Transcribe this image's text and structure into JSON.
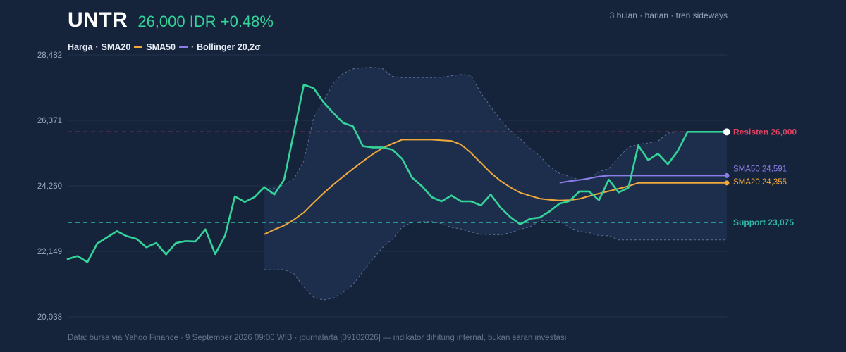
{
  "header": {
    "ticker": "UNTR",
    "price_text": "26,000 IDR +0.48%",
    "meta": "3 bulan · harian · tren sideways"
  },
  "legend": {
    "price": "Harga",
    "sep1": "·",
    "sma20": "SMA20",
    "sma50": "SMA50",
    "sep2": "·",
    "bollinger": "Bollinger 20,2σ"
  },
  "footer": {
    "text": "Data: bursa via Yahoo Finance · 9 September 2026 09:00 WIB · journalarta [09102026] — indikator dihitung internal, bukan saran investasi"
  },
  "colors": {
    "background": "#15233b",
    "grid": "#22324d",
    "price": "#34d399",
    "sma20": "#f0a93b",
    "sma50": "#8b7ee8",
    "band_fill": "#1e3050",
    "band_edge": "#5b7096",
    "resistance": "#e24462",
    "support": "#2fb9a3"
  },
  "chart_data": {
    "type": "line",
    "title": "UNTR",
    "ylim": [
      20038,
      28482
    ],
    "yticks": [
      20038,
      22149,
      24260,
      26371,
      28482
    ],
    "ytick_labels": [
      "20,038",
      "22,149",
      "24,260",
      "26,371",
      "28,482"
    ],
    "grid": true,
    "x": [
      1,
      2,
      3,
      4,
      5,
      6,
      7,
      8,
      9,
      10,
      11,
      12,
      13,
      14,
      15,
      16,
      17,
      18,
      19,
      20,
      21,
      22,
      23,
      24,
      25,
      26,
      27,
      28,
      29,
      30,
      31,
      32,
      33,
      34,
      35,
      36,
      37,
      38,
      39,
      40,
      41,
      42,
      43,
      44,
      45,
      46,
      47,
      48,
      49,
      50,
      51,
      52,
      53,
      54,
      55,
      56,
      57,
      58,
      59,
      60,
      61,
      62,
      63,
      64,
      65,
      66,
      67,
      68
    ],
    "series": [
      {
        "name": "Harga",
        "values": [
          21900,
          22000,
          21800,
          22400,
          22600,
          22800,
          22640,
          22550,
          22280,
          22420,
          22050,
          22420,
          22480,
          22470,
          22860,
          22060,
          22660,
          23920,
          23740,
          23900,
          24220,
          23980,
          24460,
          25990,
          27520,
          27410,
          26960,
          26610,
          26290,
          26180,
          25540,
          25500,
          25500,
          25430,
          25130,
          24530,
          24250,
          23900,
          23760,
          23950,
          23760,
          23760,
          23630,
          23980,
          23560,
          23250,
          23020,
          23200,
          23240,
          23440,
          23690,
          23770,
          24080,
          24080,
          23800,
          24460,
          24050,
          24200,
          25560,
          25090,
          25300,
          24960,
          25380,
          26000,
          26000,
          26000,
          26000,
          26000
        ]
      },
      {
        "name": "SMA20",
        "values": [
          null,
          null,
          null,
          null,
          null,
          null,
          null,
          null,
          null,
          null,
          null,
          null,
          null,
          null,
          null,
          null,
          null,
          null,
          null,
          null,
          22700,
          22850,
          22980,
          23170,
          23400,
          23720,
          24020,
          24300,
          24560,
          24810,
          25050,
          25280,
          25480,
          25620,
          25750,
          25750,
          25750,
          25750,
          25730,
          25710,
          25590,
          25320,
          25000,
          24680,
          24420,
          24210,
          24040,
          23940,
          23850,
          23810,
          23790,
          23800,
          23840,
          23930,
          24010,
          24090,
          24170,
          24250,
          24355,
          24355,
          24355,
          24355,
          24355,
          24355,
          24355,
          24355,
          24355,
          24355
        ]
      },
      {
        "name": "SMA50",
        "values": [
          null,
          null,
          null,
          null,
          null,
          null,
          null,
          null,
          null,
          null,
          null,
          null,
          null,
          null,
          null,
          null,
          null,
          null,
          null,
          null,
          null,
          null,
          null,
          null,
          null,
          null,
          null,
          null,
          null,
          null,
          null,
          null,
          null,
          null,
          null,
          null,
          null,
          null,
          null,
          null,
          null,
          null,
          null,
          null,
          null,
          null,
          null,
          null,
          null,
          null,
          24360,
          24410,
          24450,
          24500,
          24560,
          24591,
          24591,
          24591,
          24591,
          24591,
          24591,
          24591,
          24591,
          24591,
          24591,
          24591,
          24591,
          24591
        ]
      },
      {
        "name": "Bollinger 20,2σ",
        "upper": [
          null,
          null,
          null,
          null,
          null,
          null,
          null,
          null,
          null,
          null,
          null,
          null,
          null,
          null,
          null,
          null,
          null,
          null,
          null,
          null,
          24150,
          24190,
          24290,
          24490,
          25060,
          26460,
          26980,
          27570,
          27890,
          28030,
          28070,
          28080,
          28040,
          27790,
          27750,
          27750,
          27750,
          27750,
          27760,
          27810,
          27850,
          27820,
          27250,
          26810,
          26380,
          26040,
          25770,
          25470,
          25220,
          24880,
          24660,
          24560,
          24460,
          24470,
          24720,
          24810,
          25180,
          25500,
          25600,
          25640,
          25700,
          25960,
          26000,
          26000,
          26000,
          26000,
          26000,
          26000
        ],
        "lower": [
          null,
          null,
          null,
          null,
          null,
          null,
          null,
          null,
          null,
          null,
          null,
          null,
          null,
          null,
          null,
          null,
          null,
          null,
          null,
          null,
          21560,
          21550,
          21560,
          21420,
          21000,
          20670,
          20580,
          20640,
          20830,
          21080,
          21490,
          21890,
          22270,
          22540,
          22940,
          23080,
          23110,
          23110,
          23040,
          22920,
          22870,
          22770,
          22700,
          22690,
          22680,
          22750,
          22860,
          22940,
          23130,
          23150,
          23120,
          22920,
          22790,
          22750,
          22660,
          22650,
          22520,
          22520,
          22520,
          22520,
          22520,
          22520,
          22520,
          22520,
          22520,
          22520,
          22520,
          22520
        ]
      }
    ],
    "annotations": [
      {
        "name": "Resisten",
        "value": 26000,
        "label": "Resisten 26,000"
      },
      {
        "name": "Support",
        "value": 23075,
        "label": "Support 23,075"
      },
      {
        "name": "SMA50-end",
        "value": 24591,
        "label": "SMA50 24,591"
      },
      {
        "name": "SMA20-end",
        "value": 24355,
        "label": "SMA20 24,355"
      }
    ]
  }
}
